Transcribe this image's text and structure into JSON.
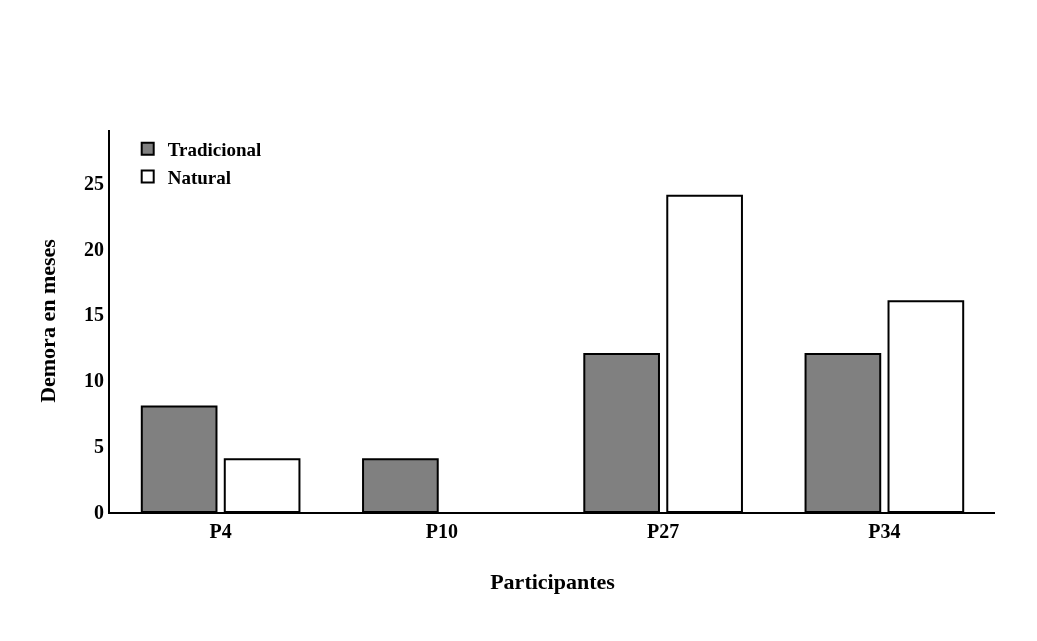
{
  "chart_data": {
    "type": "bar",
    "xlabel": "Participantes",
    "ylabel": "Demora en meses",
    "categories": [
      "P4",
      "P10",
      "P27",
      "P34"
    ],
    "series": [
      {
        "name": "Tradicional",
        "color": "#808080",
        "values": [
          8,
          4,
          12,
          12
        ]
      },
      {
        "name": "Natural",
        "color": "#ffffff",
        "values": [
          4,
          0,
          24,
          16
        ]
      }
    ],
    "ylim": [
      0,
      29
    ],
    "yticks": [
      0,
      5,
      10,
      15,
      20,
      25
    ],
    "legend": "top left"
  }
}
